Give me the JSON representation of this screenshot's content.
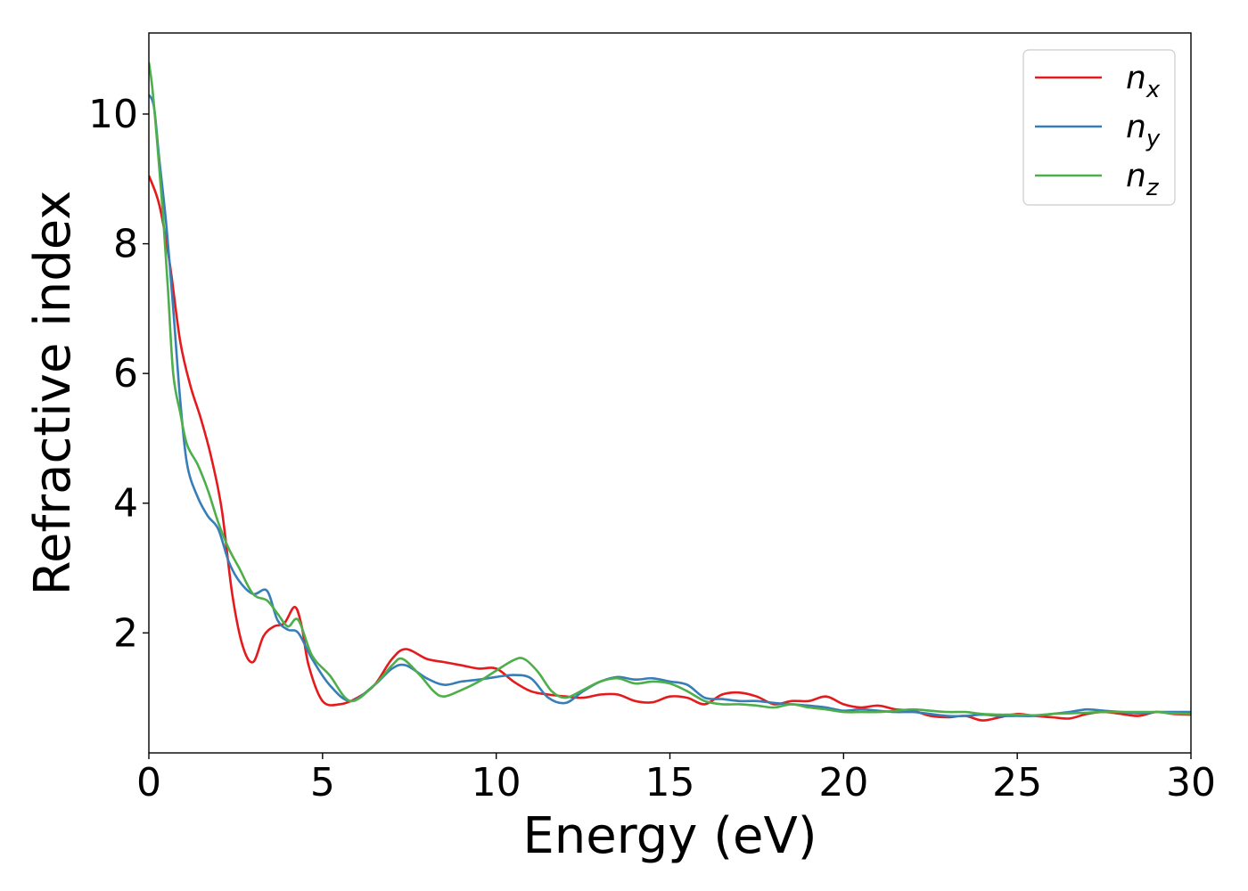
{
  "chart_data": {
    "type": "line",
    "title": "",
    "xlabel": "Energy (eV)",
    "ylabel": "Refractive index",
    "xlim": [
      0,
      30
    ],
    "ylim": [
      0.15,
      11.25
    ],
    "xticks": [
      0,
      5,
      10,
      15,
      20,
      25,
      30
    ],
    "yticks": [
      2,
      4,
      6,
      8,
      10
    ],
    "grid": false,
    "legend": {
      "position": "top-right",
      "main": [
        "n",
        "n",
        "n"
      ],
      "subs": [
        "x",
        "y",
        "z"
      ]
    },
    "series": [
      {
        "name": "n_x",
        "color": "#e41a1c",
        "x": [
          0,
          0.3,
          0.6,
          0.9,
          1.2,
          1.5,
          1.8,
          2.1,
          2.4,
          2.7,
          3.0,
          3.3,
          3.6,
          3.9,
          4.2,
          4.4,
          4.6,
          5.0,
          5.5,
          6.0,
          6.5,
          7.0,
          7.4,
          8.0,
          8.5,
          9.0,
          9.5,
          10.0,
          10.5,
          11.0,
          11.5,
          12.0,
          12.5,
          13.0,
          13.5,
          14.0,
          14.5,
          15.0,
          15.5,
          16.0,
          16.5,
          17.0,
          17.5,
          18.0,
          18.5,
          19.0,
          19.5,
          20.0,
          20.5,
          21.0,
          21.5,
          22.0,
          22.5,
          23.0,
          23.5,
          24.0,
          24.5,
          25.0,
          25.5,
          26.0,
          26.5,
          27.0,
          27.5,
          28.0,
          28.5,
          29.0,
          29.5,
          30.0
        ],
        "y": [
          9.05,
          8.6,
          7.7,
          6.5,
          5.8,
          5.3,
          4.7,
          3.9,
          2.6,
          1.8,
          1.55,
          1.95,
          2.1,
          2.15,
          2.4,
          2.1,
          1.5,
          0.95,
          0.9,
          1.0,
          1.2,
          1.6,
          1.75,
          1.6,
          1.55,
          1.5,
          1.45,
          1.45,
          1.25,
          1.1,
          1.05,
          1.02,
          1.0,
          1.05,
          1.05,
          0.95,
          0.93,
          1.02,
          1.0,
          0.9,
          1.05,
          1.08,
          1.02,
          0.9,
          0.95,
          0.95,
          1.02,
          0.9,
          0.85,
          0.88,
          0.82,
          0.8,
          0.72,
          0.7,
          0.72,
          0.65,
          0.7,
          0.75,
          0.72,
          0.7,
          0.68,
          0.75,
          0.78,
          0.75,
          0.72,
          0.78,
          0.75,
          0.74
        ]
      },
      {
        "name": "n_y",
        "color": "#377eb8",
        "x": [
          0,
          0.15,
          0.3,
          0.5,
          0.7,
          0.9,
          1.1,
          1.4,
          1.7,
          2.0,
          2.3,
          2.6,
          3.0,
          3.4,
          3.7,
          4.0,
          4.3,
          4.7,
          5.2,
          5.8,
          6.5,
          7.0,
          7.4,
          8.0,
          8.5,
          9.0,
          9.5,
          10.0,
          10.5,
          11.0,
          11.5,
          12.0,
          12.5,
          13.0,
          13.5,
          14.0,
          14.5,
          15.0,
          15.5,
          16.0,
          16.5,
          17.0,
          17.5,
          18.0,
          18.5,
          19.0,
          19.5,
          20.0,
          20.5,
          21.0,
          21.5,
          22.0,
          22.5,
          23.0,
          23.5,
          24.0,
          24.5,
          25.0,
          25.5,
          26.0,
          26.5,
          27.0,
          27.5,
          28.0,
          28.5,
          29.0,
          29.5,
          30.0
        ],
        "y": [
          10.3,
          10.1,
          9.3,
          8.3,
          7.0,
          5.6,
          4.6,
          4.1,
          3.8,
          3.6,
          3.1,
          2.8,
          2.6,
          2.65,
          2.2,
          2.05,
          2.0,
          1.6,
          1.2,
          0.95,
          1.2,
          1.45,
          1.5,
          1.3,
          1.2,
          1.25,
          1.28,
          1.32,
          1.35,
          1.3,
          1.0,
          0.92,
          1.1,
          1.25,
          1.32,
          1.28,
          1.3,
          1.25,
          1.2,
          1.0,
          0.98,
          0.95,
          0.95,
          0.92,
          0.9,
          0.88,
          0.85,
          0.8,
          0.82,
          0.8,
          0.78,
          0.78,
          0.75,
          0.72,
          0.72,
          0.74,
          0.72,
          0.72,
          0.72,
          0.75,
          0.78,
          0.82,
          0.8,
          0.78,
          0.76,
          0.78,
          0.78,
          0.78
        ]
      },
      {
        "name": "n_z",
        "color": "#4daf4a",
        "x": [
          0,
          0.1,
          0.25,
          0.4,
          0.55,
          0.7,
          0.9,
          1.1,
          1.4,
          1.7,
          2.0,
          2.3,
          2.6,
          3.0,
          3.4,
          3.7,
          4.0,
          4.3,
          4.7,
          5.2,
          5.8,
          6.5,
          7.0,
          7.3,
          7.8,
          8.2,
          8.5,
          9.0,
          9.5,
          10.0,
          10.5,
          10.8,
          11.2,
          11.6,
          12.0,
          12.5,
          13.0,
          13.5,
          14.0,
          14.5,
          15.0,
          15.5,
          16.0,
          16.5,
          17.0,
          17.5,
          18.0,
          18.5,
          19.0,
          19.5,
          20.0,
          20.5,
          21.0,
          21.5,
          22.0,
          22.5,
          23.0,
          23.5,
          24.0,
          24.5,
          25.0,
          25.5,
          26.0,
          26.5,
          27.0,
          27.5,
          28.0,
          28.5,
          29.0,
          29.5,
          30.0
        ],
        "y": [
          10.8,
          10.4,
          9.5,
          8.5,
          7.3,
          6.0,
          5.4,
          4.9,
          4.6,
          4.2,
          3.7,
          3.3,
          3.0,
          2.6,
          2.5,
          2.3,
          2.1,
          2.2,
          1.65,
          1.35,
          0.95,
          1.2,
          1.5,
          1.6,
          1.35,
          1.1,
          1.02,
          1.12,
          1.25,
          1.42,
          1.58,
          1.6,
          1.4,
          1.1,
          1.0,
          1.12,
          1.25,
          1.3,
          1.22,
          1.25,
          1.22,
          1.1,
          0.95,
          0.9,
          0.9,
          0.88,
          0.85,
          0.9,
          0.85,
          0.82,
          0.78,
          0.78,
          0.78,
          0.8,
          0.82,
          0.8,
          0.78,
          0.78,
          0.75,
          0.74,
          0.74,
          0.73,
          0.75,
          0.76,
          0.77,
          0.78,
          0.78,
          0.78,
          0.78,
          0.76,
          0.75
        ]
      }
    ]
  }
}
